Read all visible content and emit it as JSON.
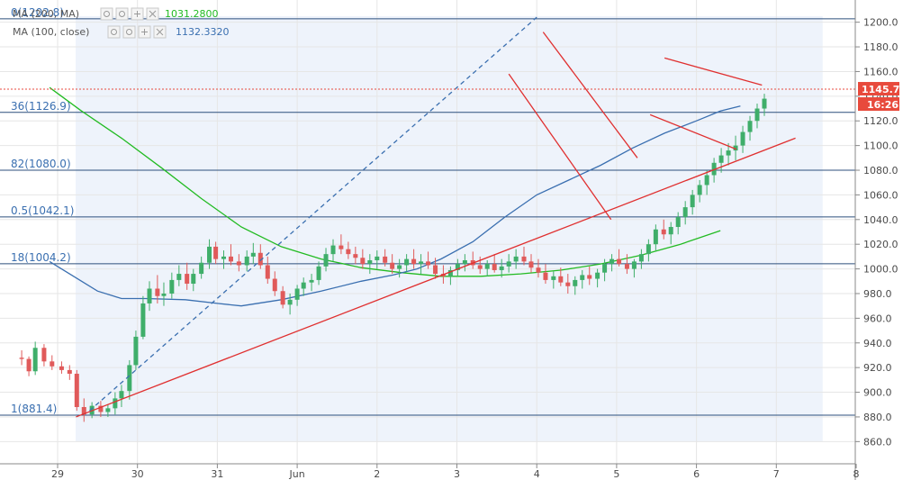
{
  "chart_data": {
    "type": "candlestick",
    "title": "",
    "xlabel": "",
    "ylabel": "",
    "ylim": [
      842,
      1218
    ],
    "y_ticks": [
      "860.0",
      "880.0",
      "900.0",
      "920.0",
      "940.0",
      "960.0",
      "980.0",
      "1000.0",
      "1020.0",
      "1040.0",
      "1060.0",
      "1080.0",
      "1100.0",
      "1120.0",
      "1140.0",
      "1160.0",
      "1180.0",
      "1200.0"
    ],
    "x_ticks": [
      "29",
      "30",
      "31",
      "Jun",
      "2",
      "3",
      "4",
      "5",
      "6",
      "7",
      "8"
    ],
    "legend": [
      {
        "name": "MA (200, MA)",
        "value": "1031.2800",
        "color": "#22bb22"
      },
      {
        "name": "MA (100, close)",
        "value": "1132.3320",
        "color": "#3a6fb0"
      }
    ],
    "fib_levels": [
      {
        "label": "0(1202.8)",
        "value": 1202.8
      },
      {
        "label": "36(1126.9)",
        "value": 1126.9
      },
      {
        "label": "82(1080.0)",
        "value": 1080.0
      },
      {
        "label": "0.5(1042.1)",
        "value": 1042.1
      },
      {
        "label": "18(1004.2)",
        "value": 1004.2
      },
      {
        "label": "1(881.4)",
        "value": 881.4
      }
    ],
    "last_price": {
      "value": "1145.7",
      "time": "16:26",
      "color": "#e84a3c"
    },
    "ma200": [
      [
        -0.1,
        1147
      ],
      [
        0.3,
        1128
      ],
      [
        0.8,
        1106
      ],
      [
        1.3,
        1082
      ],
      [
        1.8,
        1057
      ],
      [
        2.3,
        1034
      ],
      [
        2.8,
        1018
      ],
      [
        3.3,
        1008
      ],
      [
        3.8,
        1001
      ],
      [
        4.3,
        997
      ],
      [
        4.8,
        994
      ],
      [
        5.3,
        994
      ],
      [
        5.8,
        996
      ],
      [
        6.3,
        999
      ],
      [
        6.8,
        1004
      ],
      [
        7.3,
        1011
      ],
      [
        7.8,
        1020
      ],
      [
        8.3,
        1031
      ]
    ],
    "ma100": [
      [
        -0.1,
        1006
      ],
      [
        0.2,
        994
      ],
      [
        0.5,
        982
      ],
      [
        0.8,
        976
      ],
      [
        1.1,
        976
      ],
      [
        1.6,
        975
      ],
      [
        2.0,
        972
      ],
      [
        2.3,
        970
      ],
      [
        2.8,
        975
      ],
      [
        3.3,
        982
      ],
      [
        3.8,
        990
      ],
      [
        4.2,
        995
      ],
      [
        4.5,
        1000
      ],
      [
        4.8,
        1008
      ],
      [
        5.2,
        1022
      ],
      [
        5.6,
        1042
      ],
      [
        6.0,
        1060
      ],
      [
        6.4,
        1072
      ],
      [
        6.8,
        1084
      ],
      [
        7.2,
        1098
      ],
      [
        7.6,
        1110
      ],
      [
        8.0,
        1120
      ],
      [
        8.3,
        1128
      ],
      [
        8.55,
        1132
      ]
    ],
    "trendlines": [
      {
        "color": "#e03030",
        "dashed": false,
        "points": [
          [
            0.23,
            880
          ],
          [
            9.24,
            1106
          ]
        ]
      },
      {
        "color": "#e03030",
        "dashed": false,
        "points": [
          [
            6.08,
            1192
          ],
          [
            7.26,
            1090
          ]
        ]
      },
      {
        "color": "#e03030",
        "dashed": false,
        "points": [
          [
            5.65,
            1158
          ],
          [
            6.93,
            1040
          ]
        ]
      },
      {
        "color": "#e03030",
        "dashed": false,
        "points": [
          [
            7.6,
            1171
          ],
          [
            8.82,
            1149
          ]
        ]
      },
      {
        "color": "#e03030",
        "dashed": false,
        "points": [
          [
            7.42,
            1125
          ],
          [
            8.5,
            1097
          ]
        ]
      },
      {
        "color": "#3a6fb0",
        "dashed": true,
        "points": [
          [
            0.4,
            885
          ],
          [
            6.0,
            1204
          ]
        ]
      }
    ],
    "candles": [
      [
        -0.45,
        928,
        934,
        922,
        927
      ],
      [
        -0.36,
        927,
        929,
        913,
        917
      ],
      [
        -0.28,
        917,
        941,
        914,
        936
      ],
      [
        -0.17,
        936,
        939,
        921,
        925
      ],
      [
        -0.07,
        925,
        930,
        918,
        921
      ],
      [
        0.05,
        921,
        925,
        915,
        918
      ],
      [
        0.15,
        918,
        922,
        910,
        915
      ],
      [
        0.24,
        915,
        918,
        885,
        888
      ],
      [
        0.33,
        888,
        895,
        876,
        882
      ],
      [
        0.43,
        882,
        892,
        879,
        889
      ],
      [
        0.54,
        889,
        893,
        880,
        884
      ],
      [
        0.63,
        884,
        890,
        880,
        887
      ],
      [
        0.72,
        887,
        900,
        882,
        895
      ],
      [
        0.8,
        895,
        906,
        888,
        901
      ],
      [
        0.9,
        901,
        926,
        894,
        922
      ],
      [
        0.98,
        922,
        950,
        918,
        945
      ],
      [
        1.07,
        945,
        978,
        943,
        972
      ],
      [
        1.15,
        972,
        990,
        966,
        984
      ],
      [
        1.25,
        984,
        995,
        972,
        978
      ],
      [
        1.33,
        978,
        989,
        970,
        980
      ],
      [
        1.43,
        980,
        997,
        976,
        991
      ],
      [
        1.52,
        991,
        1003,
        986,
        996
      ],
      [
        1.62,
        996,
        1005,
        983,
        988
      ],
      [
        1.7,
        988,
        1000,
        982,
        996
      ],
      [
        1.8,
        996,
        1010,
        992,
        1005
      ],
      [
        1.9,
        1005,
        1024,
        1000,
        1018
      ],
      [
        1.98,
        1018,
        1022,
        1004,
        1008
      ],
      [
        2.08,
        1008,
        1015,
        1000,
        1010
      ],
      [
        2.17,
        1010,
        1020,
        1003,
        1006
      ],
      [
        2.27,
        1006,
        1012,
        998,
        1003
      ],
      [
        2.37,
        1003,
        1015,
        998,
        1010
      ],
      [
        2.45,
        1010,
        1021,
        1004,
        1013
      ],
      [
        2.54,
        1013,
        1020,
        1000,
        1003
      ],
      [
        2.63,
        1003,
        1010,
        988,
        992
      ],
      [
        2.72,
        992,
        998,
        978,
        982
      ],
      [
        2.82,
        982,
        986,
        968,
        971
      ],
      [
        2.91,
        971,
        980,
        963,
        975
      ],
      [
        3.0,
        975,
        987,
        970,
        984
      ],
      [
        3.08,
        984,
        993,
        978,
        989
      ],
      [
        3.18,
        989,
        996,
        982,
        991
      ],
      [
        3.27,
        991,
        1006,
        987,
        1002
      ],
      [
        3.36,
        1002,
        1017,
        998,
        1012
      ],
      [
        3.45,
        1012,
        1024,
        1006,
        1019
      ],
      [
        3.55,
        1019,
        1028,
        1012,
        1016
      ],
      [
        3.64,
        1016,
        1022,
        1008,
        1012
      ],
      [
        3.73,
        1012,
        1018,
        1004,
        1009
      ],
      [
        3.82,
        1009,
        1016,
        1000,
        1004
      ],
      [
        3.91,
        1004,
        1012,
        996,
        1007
      ],
      [
        4.0,
        1007,
        1015,
        1000,
        1010
      ],
      [
        4.1,
        1010,
        1016,
        1002,
        1005
      ],
      [
        4.19,
        1005,
        1012,
        996,
        1000
      ],
      [
        4.28,
        1000,
        1008,
        993,
        1003
      ],
      [
        4.37,
        1003,
        1012,
        998,
        1008
      ],
      [
        4.46,
        1008,
        1016,
        1000,
        1004
      ],
      [
        4.55,
        1004,
        1012,
        996,
        1006
      ],
      [
        4.64,
        1006,
        1014,
        1000,
        1003
      ],
      [
        4.73,
        1003,
        1009,
        992,
        996
      ],
      [
        4.83,
        996,
        1003,
        988,
        994
      ],
      [
        4.92,
        994,
        1002,
        987,
        999
      ],
      [
        5.01,
        999,
        1008,
        994,
        1004
      ],
      [
        5.1,
        1004,
        1012,
        998,
        1007
      ],
      [
        5.2,
        1007,
        1014,
        1000,
        1003
      ],
      [
        5.29,
        1003,
        1010,
        996,
        1000
      ],
      [
        5.38,
        1000,
        1007,
        994,
        1004
      ],
      [
        5.47,
        1004,
        1012,
        997,
        999
      ],
      [
        5.56,
        999,
        1008,
        993,
        1002
      ],
      [
        5.65,
        1002,
        1012,
        997,
        1006
      ],
      [
        5.74,
        1006,
        1016,
        1000,
        1010
      ],
      [
        5.84,
        1010,
        1018,
        1003,
        1006
      ],
      [
        5.93,
        1006,
        1012,
        997,
        1001
      ],
      [
        6.02,
        1001,
        1008,
        993,
        997
      ],
      [
        6.11,
        997,
        1004,
        988,
        991
      ],
      [
        6.21,
        991,
        998,
        984,
        994
      ],
      [
        6.3,
        994,
        1001,
        986,
        989
      ],
      [
        6.39,
        989,
        996,
        980,
        986
      ],
      [
        6.48,
        986,
        994,
        979,
        991
      ],
      [
        6.57,
        991,
        999,
        984,
        995
      ],
      [
        6.66,
        995,
        1002,
        987,
        992
      ],
      [
        6.76,
        992,
        1000,
        985,
        997
      ],
      [
        6.85,
        997,
        1008,
        990,
        1004
      ],
      [
        6.94,
        1004,
        1012,
        998,
        1008
      ],
      [
        7.03,
        1008,
        1016,
        1002,
        1004
      ],
      [
        7.13,
        1004,
        1012,
        996,
        1000
      ],
      [
        7.22,
        1000,
        1008,
        993,
        1006
      ],
      [
        7.31,
        1006,
        1016,
        1000,
        1012
      ],
      [
        7.4,
        1012,
        1024,
        1006,
        1020
      ],
      [
        7.49,
        1020,
        1036,
        1015,
        1032
      ],
      [
        7.59,
        1032,
        1040,
        1024,
        1028
      ],
      [
        7.68,
        1028,
        1038,
        1020,
        1034
      ],
      [
        7.77,
        1034,
        1046,
        1028,
        1042
      ],
      [
        7.86,
        1042,
        1055,
        1036,
        1050
      ],
      [
        7.95,
        1050,
        1064,
        1044,
        1060
      ],
      [
        8.04,
        1060,
        1072,
        1054,
        1068
      ],
      [
        8.13,
        1068,
        1080,
        1060,
        1076
      ],
      [
        8.22,
        1076,
        1090,
        1070,
        1086
      ],
      [
        8.31,
        1086,
        1098,
        1078,
        1092
      ],
      [
        8.4,
        1092,
        1102,
        1084,
        1096
      ],
      [
        8.49,
        1096,
        1108,
        1088,
        1100
      ],
      [
        8.58,
        1100,
        1116,
        1094,
        1111
      ],
      [
        8.67,
        1111,
        1124,
        1104,
        1120
      ],
      [
        8.76,
        1120,
        1134,
        1114,
        1130
      ],
      [
        8.85,
        1130,
        1142,
        1124,
        1138
      ]
    ]
  }
}
